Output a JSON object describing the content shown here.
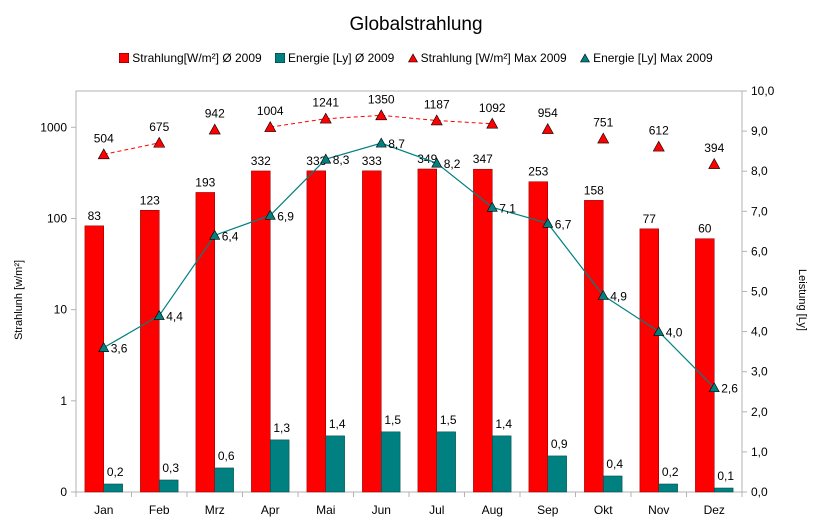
{
  "chart_data": {
    "type": "bar",
    "title": "Globalstrahlung",
    "categories": [
      "Jan",
      "Feb",
      "Mrz",
      "Apr",
      "Mai",
      "Jun",
      "Jul",
      "Aug",
      "Sep",
      "Okt",
      "Nov",
      "Dez"
    ],
    "ylabel_left": "Strahlunh [w/m²]",
    "ylabel_right": "Leistung [Ly]",
    "y_left_scale": "log",
    "y_left_ticks": [
      "0",
      "1",
      "10",
      "100",
      "1000"
    ],
    "y_right_ticks": [
      "0,0",
      "1,0",
      "2,0",
      "3,0",
      "4,0",
      "5,0",
      "6,0",
      "7,0",
      "8,0",
      "9,0",
      "10,0"
    ],
    "y_right_range": [
      0,
      10
    ],
    "legend_position": "top",
    "series": [
      {
        "name": "Strahlung[W/m²] Ø 2009",
        "kind": "bar",
        "axis": "left",
        "color": "#ff0000",
        "values": [
          83,
          123,
          193,
          332,
          333,
          333,
          349,
          347,
          253,
          158,
          77,
          60
        ],
        "labels": [
          "83",
          "123",
          "193",
          "332",
          "333",
          "333",
          "349",
          "347",
          "253",
          "158",
          "77",
          "60"
        ]
      },
      {
        "name": "Energie [Ly] Ø 2009",
        "kind": "bar",
        "axis": "right",
        "color": "#008080",
        "values": [
          0.2,
          0.3,
          0.6,
          1.3,
          1.4,
          1.5,
          1.5,
          1.4,
          0.9,
          0.4,
          0.2,
          0.1
        ],
        "labels": [
          "0,2",
          "0,3",
          "0,6",
          "1,3",
          "1,4",
          "1,5",
          "1,5",
          "1,4",
          "0,9",
          "0,4",
          "0,2",
          "0,1"
        ]
      },
      {
        "name": "Strahlung [W/m²] Max 2009",
        "kind": "line-marker",
        "axis": "left",
        "color": "#ff0000",
        "values": [
          504,
          675,
          942,
          1004,
          1241,
          1350,
          1187,
          1092,
          954,
          751,
          612,
          394
        ],
        "labels": [
          "504",
          "675",
          "942",
          "1004",
          "1241",
          "1350",
          "1187",
          "1092",
          "954",
          "751",
          "612",
          "394"
        ]
      },
      {
        "name": "Energie [Ly] Max 2009",
        "kind": "line-marker",
        "axis": "right",
        "color": "#008080",
        "values": [
          3.6,
          4.4,
          6.4,
          6.9,
          8.3,
          8.7,
          8.2,
          7.1,
          6.7,
          4.9,
          4.0,
          2.6
        ],
        "labels": [
          "3,6",
          "4,4",
          "6,4",
          "6,9",
          "8,3",
          "8,7",
          "8,2",
          "7,1",
          "6,7",
          "4,9",
          "4,0",
          "2,6"
        ]
      }
    ]
  }
}
